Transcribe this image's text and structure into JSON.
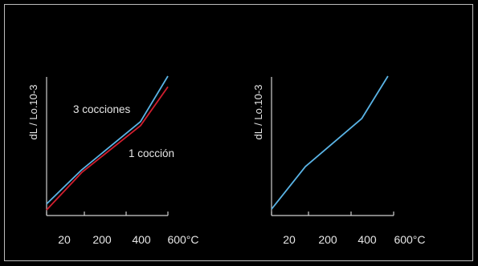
{
  "chart_data": [
    {
      "type": "line",
      "ylabel": "dL / Lo.10-3",
      "x_tick_labels": [
        "20",
        "200",
        "400",
        "600°C"
      ],
      "series": [
        {
          "name": "3 cocciones",
          "color": "#5ab4e6",
          "points": [
            [
              0,
              0.045
            ],
            [
              0.45,
              0.3
            ],
            [
              1.2,
              0.66
            ],
            [
              1.55,
              1.0
            ]
          ]
        },
        {
          "name": "1 cocción",
          "color": "#d01e2e",
          "points": [
            [
              0,
              0.0
            ],
            [
              0.45,
              0.28
            ],
            [
              1.2,
              0.63
            ],
            [
              1.55,
              0.92
            ]
          ]
        }
      ]
    },
    {
      "type": "line",
      "ylabel": "dL / Lo.10-3",
      "x_tick_labels": [
        "20",
        "200",
        "400",
        "600°C"
      ],
      "series": [
        {
          "color": "#5ab4e6",
          "points": [
            [
              0,
              0.0
            ],
            [
              0.45,
              0.32
            ],
            [
              1.2,
              0.68
            ],
            [
              1.55,
              1.0
            ]
          ]
        }
      ]
    }
  ]
}
